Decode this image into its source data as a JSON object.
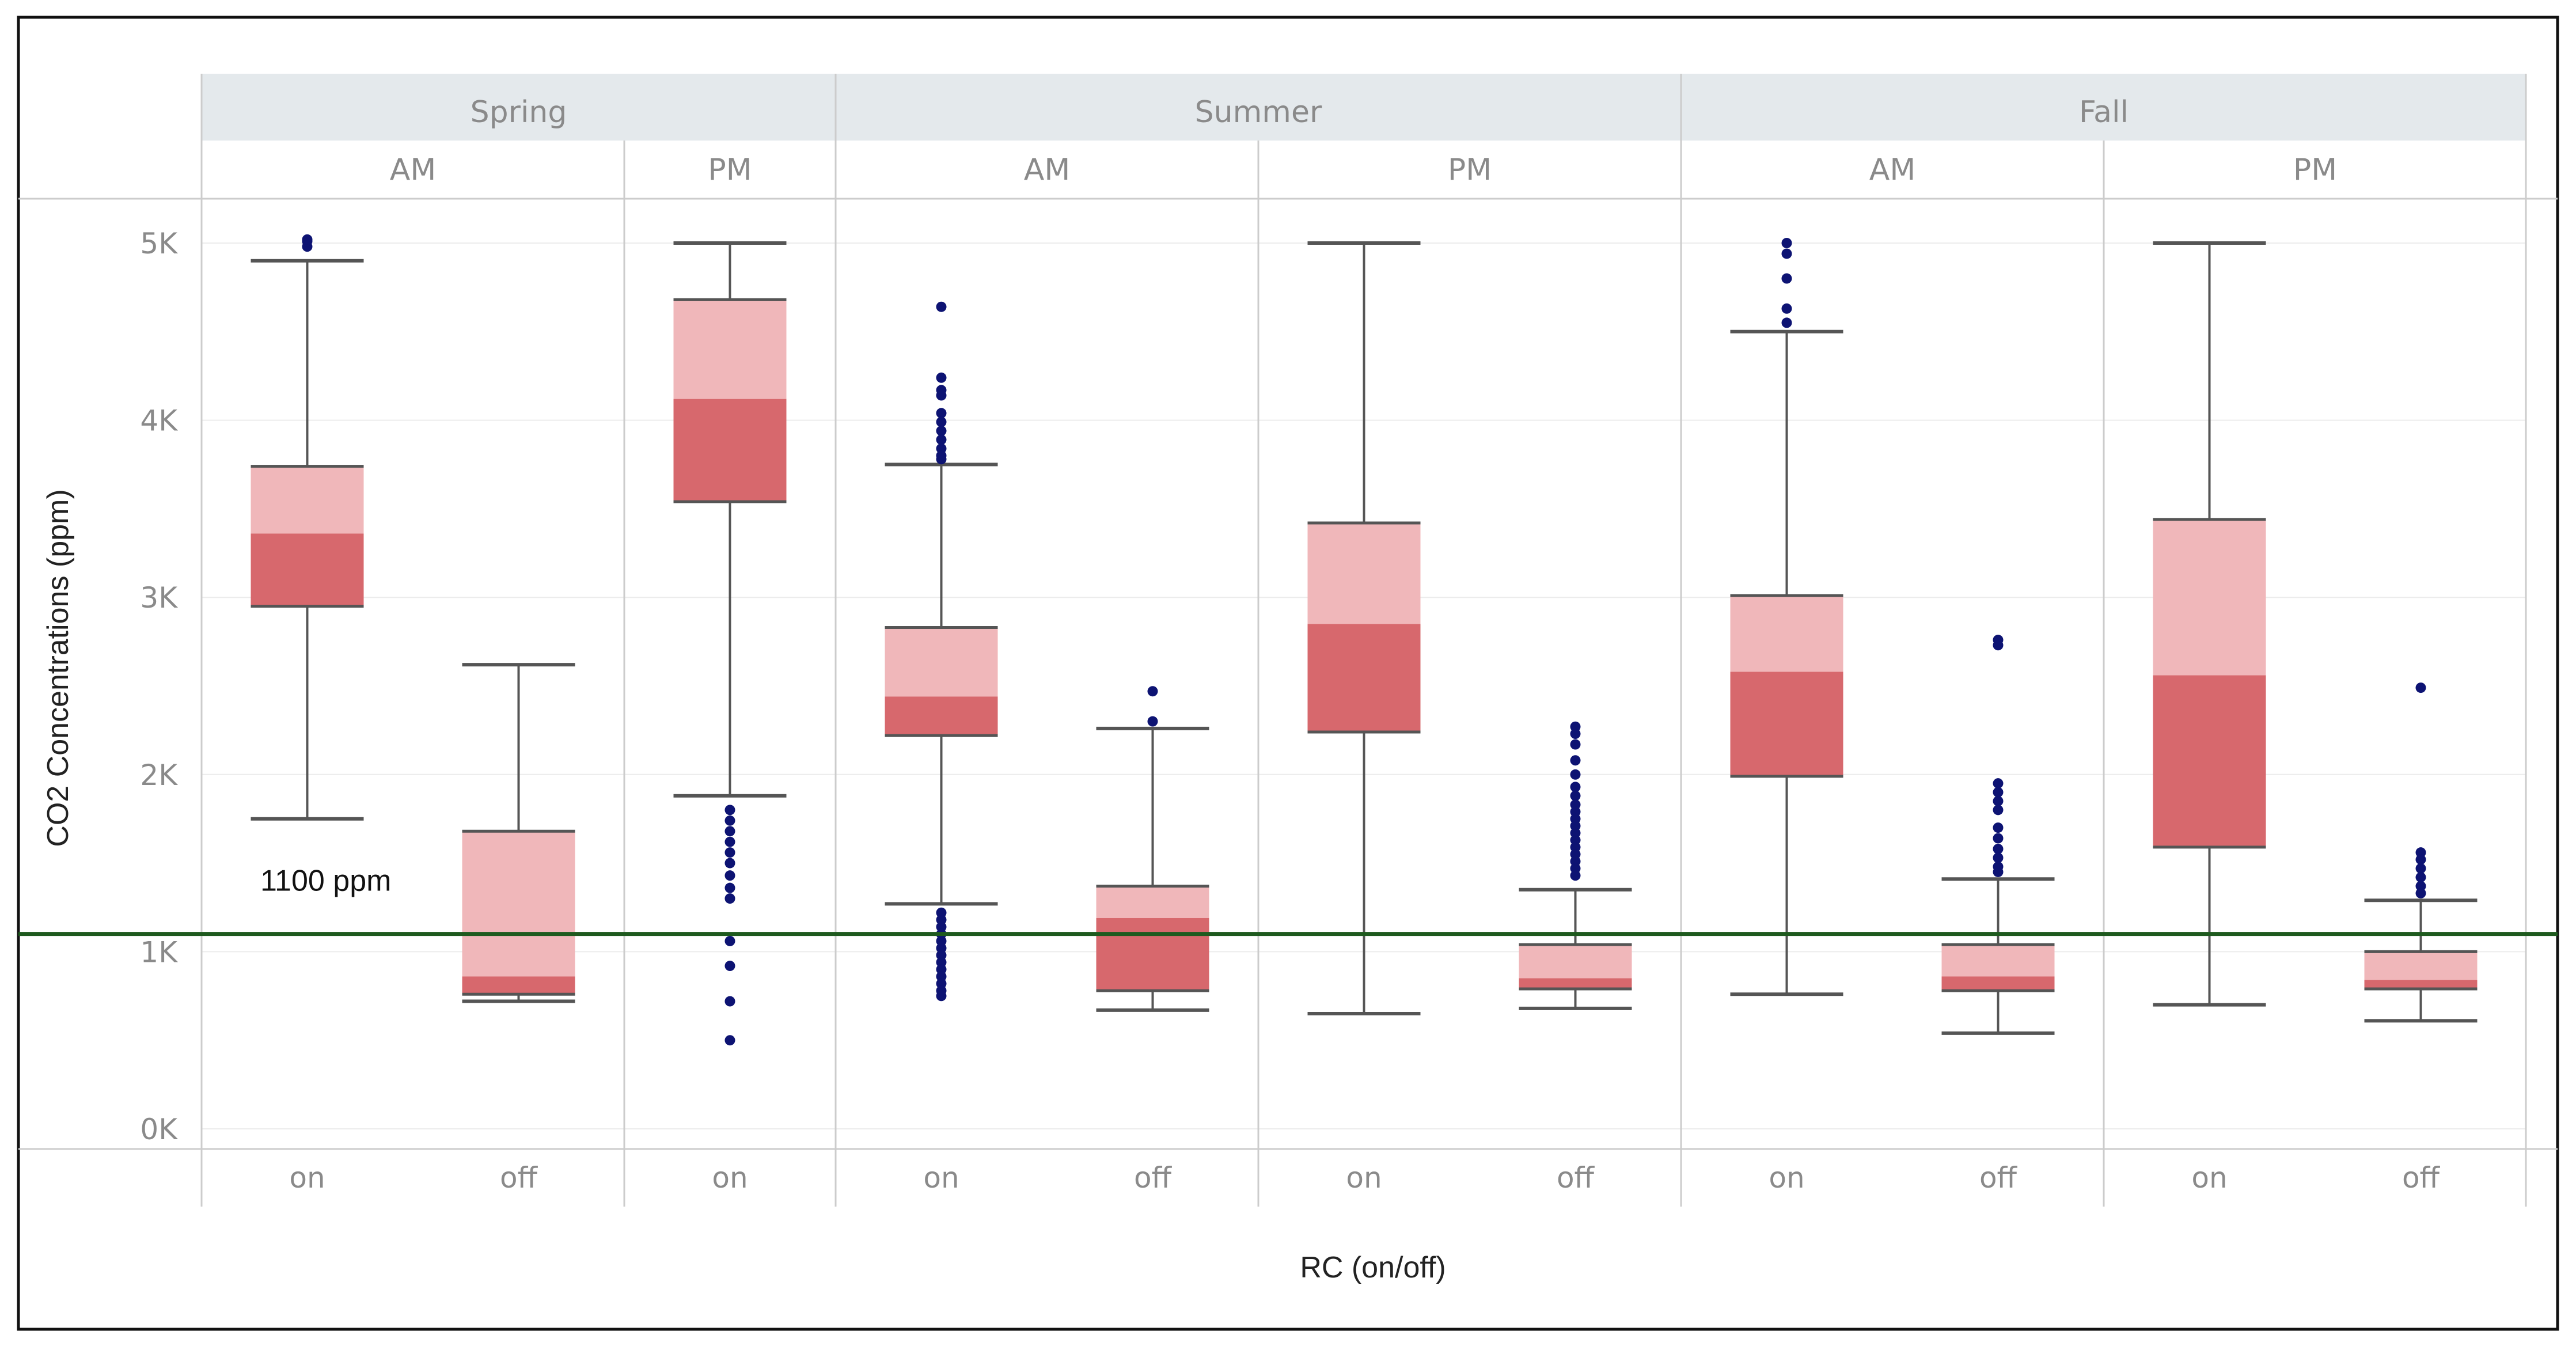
{
  "chart_data": {
    "type": "boxplot",
    "ylabel": "CO2 Concentrations (ppm)",
    "xlabel": "RC (on/off)",
    "ylim": [
      0,
      5000
    ],
    "yticks": [
      {
        "value": 0,
        "label": "0K"
      },
      {
        "value": 1000,
        "label": "1K"
      },
      {
        "value": 2000,
        "label": "2K"
      },
      {
        "value": 3000,
        "label": "3K"
      },
      {
        "value": 4000,
        "label": "4K"
      },
      {
        "value": 5000,
        "label": "5K"
      }
    ],
    "reference_line": {
      "value": 1100,
      "label": "1100 ppm",
      "color": "#1e5a1e"
    },
    "colors": {
      "upper_box": "#f0b7ba",
      "lower_box": "#d7686d",
      "whisker": "#555555",
      "outlier": "#0d1373",
      "header_bg": "#e4e9ec",
      "grid": "#ececec",
      "divider": "#cccccc"
    },
    "seasons": [
      {
        "name": "Spring",
        "periods": [
          {
            "name": "AM",
            "groups": [
              {
                "rc": "on",
                "whisker_low": 1750,
                "q1": 2950,
                "median": 3360,
                "q3": 3740,
                "whisker_high": 4900,
                "outliers": [
                  4980,
                  5010,
                  5020
                ]
              },
              {
                "rc": "off",
                "whisker_low": 720,
                "q1": 760,
                "median": 860,
                "q3": 1680,
                "whisker_high": 2620,
                "outliers": []
              }
            ]
          },
          {
            "name": "PM",
            "groups": [
              {
                "rc": "on",
                "whisker_low": 1880,
                "q1": 3540,
                "median": 4120,
                "q3": 4680,
                "whisker_high": 5000,
                "outliers": [
                  1800,
                  1740,
                  1680,
                  1620,
                  1560,
                  1500,
                  1430,
                  1360,
                  1300,
                  1060,
                  920,
                  720,
                  500
                ]
              }
            ]
          }
        ]
      },
      {
        "name": "Summer",
        "periods": [
          {
            "name": "AM",
            "groups": [
              {
                "rc": "on",
                "whisker_low": 1270,
                "q1": 2220,
                "median": 2440,
                "q3": 2830,
                "whisker_high": 3750,
                "outliers": [
                  4640,
                  4240,
                  4170,
                  4140,
                  4040,
                  3990,
                  3940,
                  3890,
                  3840,
                  3800,
                  3780,
                  1220,
                  1180,
                  1140,
                  1100,
                  1060,
                  1020,
                  980,
                  940,
                  900,
                  860,
                  820,
                  780,
                  750
                ]
              },
              {
                "rc": "off",
                "whisker_low": 670,
                "q1": 780,
                "median": 1190,
                "q3": 1370,
                "whisker_high": 2260,
                "outliers": [
                  2470,
                  2300
                ]
              }
            ]
          },
          {
            "name": "PM",
            "groups": [
              {
                "rc": "on",
                "whisker_low": 650,
                "q1": 2240,
                "median": 2850,
                "q3": 3420,
                "whisker_high": 5000,
                "outliers": []
              },
              {
                "rc": "off",
                "whisker_low": 680,
                "q1": 790,
                "median": 850,
                "q3": 1040,
                "whisker_high": 1350,
                "outliers": [
                  2270,
                  2230,
                  2170,
                  2080,
                  2000,
                  1930,
                  1880,
                  1830,
                  1790,
                  1750,
                  1710,
                  1670,
                  1630,
                  1590,
                  1550,
                  1510,
                  1470,
                  1430
                ]
              }
            ]
          }
        ]
      },
      {
        "name": "Fall",
        "periods": [
          {
            "name": "AM",
            "groups": [
              {
                "rc": "on",
                "whisker_low": 760,
                "q1": 1990,
                "median": 2580,
                "q3": 3010,
                "whisker_high": 4500,
                "outliers": [
                  5000,
                  4940,
                  4800,
                  4630,
                  4550
                ]
              },
              {
                "rc": "off",
                "whisker_low": 540,
                "q1": 780,
                "median": 860,
                "q3": 1040,
                "whisker_high": 1410,
                "outliers": [
                  2760,
                  2730,
                  1950,
                  1900,
                  1850,
                  1800,
                  1700,
                  1640,
                  1580,
                  1530,
                  1480,
                  1450
                ]
              }
            ]
          },
          {
            "name": "PM",
            "groups": [
              {
                "rc": "on",
                "whisker_low": 700,
                "q1": 1590,
                "median": 2560,
                "q3": 3440,
                "whisker_high": 5000,
                "outliers": []
              },
              {
                "rc": "off",
                "whisker_low": 610,
                "q1": 790,
                "median": 840,
                "q3": 1000,
                "whisker_high": 1290,
                "outliers": [
                  2490,
                  1560,
                  1520,
                  1470,
                  1420,
                  1370,
                  1330
                ]
              }
            ]
          }
        ]
      }
    ]
  }
}
